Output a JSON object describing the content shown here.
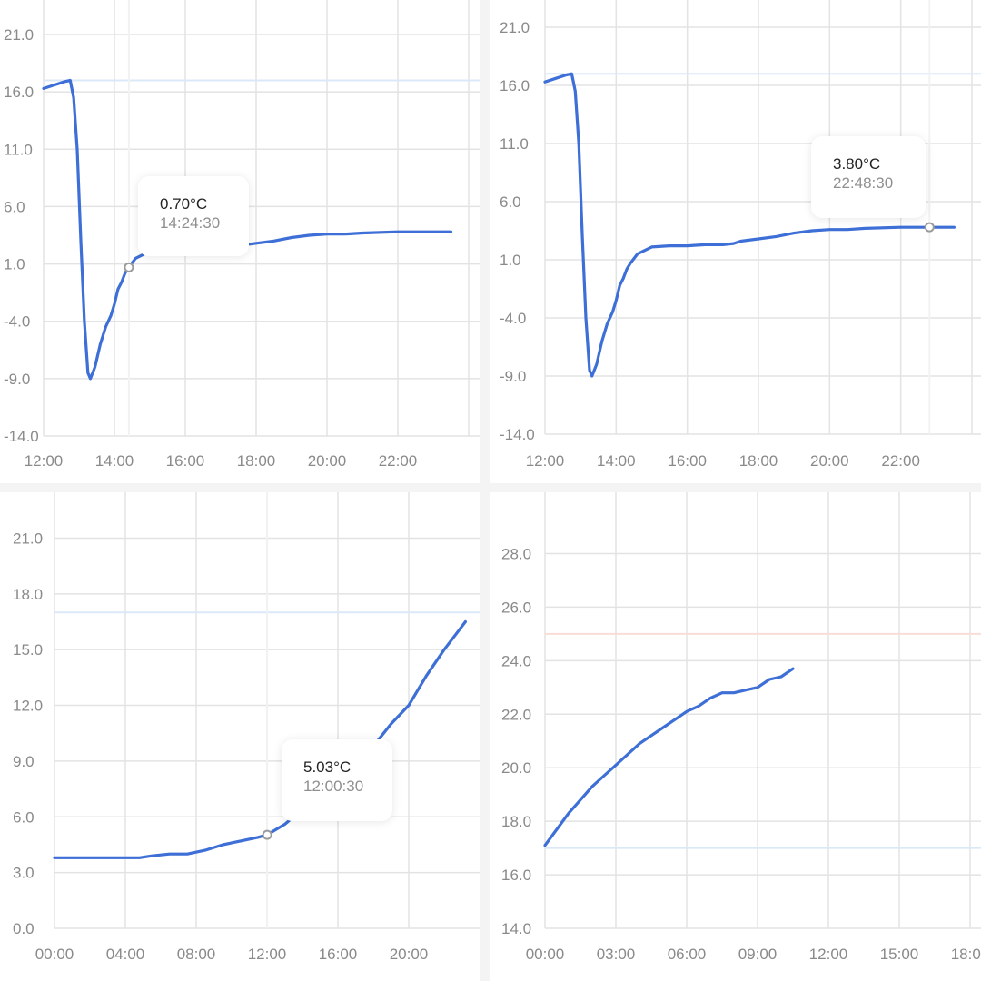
{
  "chart_data": [
    {
      "type": "line",
      "title": "",
      "xlabel": "",
      "ylabel": "",
      "x_unit": "hour",
      "xticks": [
        {
          "v": 12,
          "l": "12:00"
        },
        {
          "v": 14,
          "l": "14:00"
        },
        {
          "v": 16,
          "l": "16:00"
        },
        {
          "v": 18,
          "l": "18:00"
        },
        {
          "v": 20,
          "l": "20:00"
        },
        {
          "v": 22,
          "l": "22:00"
        }
      ],
      "yticks": [
        21.0,
        16.0,
        11.0,
        6.0,
        1.0,
        -4.0,
        -9.0,
        -14.0
      ],
      "ytick_labels": [
        "21.0",
        "16.0",
        "11.0",
        "6.0",
        "1.0",
        "-4.0",
        "-9.0",
        "-14.0"
      ],
      "xlim": [
        12,
        24
      ],
      "ylim": [
        -14,
        21
      ],
      "threshold_lines": [
        {
          "y": 17,
          "color": "#dbe8f8"
        }
      ],
      "series": [
        {
          "color": "#3d6fd6",
          "points": [
            [
              12.0,
              16.3
            ],
            [
              12.3,
              16.6
            ],
            [
              12.6,
              16.9
            ],
            [
              12.75,
              17.0
            ],
            [
              12.85,
              15.5
            ],
            [
              12.95,
              11
            ],
            [
              13.05,
              3
            ],
            [
              13.15,
              -4
            ],
            [
              13.25,
              -8.5
            ],
            [
              13.32,
              -9.0
            ],
            [
              13.45,
              -8.0
            ],
            [
              13.6,
              -6.0
            ],
            [
              13.75,
              -4.5
            ],
            [
              13.9,
              -3.5
            ],
            [
              14.0,
              -2.5
            ],
            [
              14.1,
              -1.2
            ],
            [
              14.2,
              -0.6
            ],
            [
              14.3,
              0.2
            ],
            [
              14.4,
              0.7
            ],
            [
              14.6,
              1.5
            ],
            [
              15.0,
              2.1
            ],
            [
              15.5,
              2.2
            ],
            [
              16.0,
              2.2
            ],
            [
              16.5,
              2.3
            ],
            [
              17.0,
              2.3
            ],
            [
              17.3,
              2.4
            ],
            [
              17.5,
              2.6
            ],
            [
              18.0,
              2.8
            ],
            [
              18.5,
              3.0
            ],
            [
              19.0,
              3.3
            ],
            [
              19.5,
              3.5
            ],
            [
              20.0,
              3.6
            ],
            [
              20.5,
              3.6
            ],
            [
              21.0,
              3.7
            ],
            [
              22.0,
              3.8
            ],
            [
              23.5,
              3.8
            ]
          ]
        }
      ],
      "selected": {
        "x": 14.408,
        "y": 0.7
      },
      "tooltip": {
        "value": "0.70°C",
        "time": "14:24:30"
      }
    },
    {
      "type": "line",
      "title": "",
      "xlabel": "",
      "ylabel": "",
      "x_unit": "hour",
      "xticks": [
        {
          "v": 12,
          "l": "12:00"
        },
        {
          "v": 14,
          "l": "14:00"
        },
        {
          "v": 16,
          "l": "16:00"
        },
        {
          "v": 18,
          "l": "18:00"
        },
        {
          "v": 20,
          "l": "20:00"
        },
        {
          "v": 22,
          "l": "22:00"
        }
      ],
      "yticks": [
        21.0,
        16.0,
        11.0,
        6.0,
        1.0,
        -4.0,
        -9.0,
        -14.0
      ],
      "ytick_labels": [
        "21.0",
        "16.0",
        "11.0",
        "6.0",
        "1.0",
        "-4.0",
        "-9.0",
        "-14.0"
      ],
      "xlim": [
        12,
        24
      ],
      "ylim": [
        -14,
        21
      ],
      "threshold_lines": [
        {
          "y": 17,
          "color": "#dbe8f8"
        }
      ],
      "series": [
        {
          "color": "#3d6fd6",
          "points": [
            [
              12.0,
              16.3
            ],
            [
              12.3,
              16.6
            ],
            [
              12.6,
              16.9
            ],
            [
              12.75,
              17.0
            ],
            [
              12.85,
              15.5
            ],
            [
              12.95,
              11
            ],
            [
              13.05,
              3
            ],
            [
              13.15,
              -4
            ],
            [
              13.25,
              -8.5
            ],
            [
              13.32,
              -9.0
            ],
            [
              13.45,
              -8.0
            ],
            [
              13.6,
              -6.0
            ],
            [
              13.75,
              -4.5
            ],
            [
              13.9,
              -3.5
            ],
            [
              14.0,
              -2.5
            ],
            [
              14.1,
              -1.2
            ],
            [
              14.2,
              -0.6
            ],
            [
              14.3,
              0.2
            ],
            [
              14.4,
              0.7
            ],
            [
              14.6,
              1.5
            ],
            [
              15.0,
              2.1
            ],
            [
              15.5,
              2.2
            ],
            [
              16.0,
              2.2
            ],
            [
              16.5,
              2.3
            ],
            [
              17.0,
              2.3
            ],
            [
              17.3,
              2.4
            ],
            [
              17.5,
              2.6
            ],
            [
              18.0,
              2.8
            ],
            [
              18.5,
              3.0
            ],
            [
              19.0,
              3.3
            ],
            [
              19.5,
              3.5
            ],
            [
              20.0,
              3.6
            ],
            [
              20.5,
              3.6
            ],
            [
              21.0,
              3.7
            ],
            [
              22.0,
              3.8
            ],
            [
              23.5,
              3.8
            ]
          ]
        }
      ],
      "selected": {
        "x": 22.808,
        "y": 3.8
      },
      "tooltip": {
        "value": "3.80°C",
        "time": "22:48:30"
      }
    },
    {
      "type": "line",
      "title": "",
      "xlabel": "",
      "ylabel": "",
      "x_unit": "hour",
      "xticks": [
        {
          "v": 0,
          "l": "00:00"
        },
        {
          "v": 4,
          "l": "04:00"
        },
        {
          "v": 8,
          "l": "08:00"
        },
        {
          "v": 12,
          "l": "12:00"
        },
        {
          "v": 16,
          "l": "16:00"
        },
        {
          "v": 20,
          "l": "20:00"
        }
      ],
      "yticks": [
        21.0,
        18.0,
        15.0,
        12.0,
        9.0,
        6.0,
        3.0,
        0.0
      ],
      "ytick_labels": [
        "21.0",
        "18.0",
        "15.0",
        "12.0",
        "9.0",
        "6.0",
        "3.0",
        "0.0"
      ],
      "xlim": [
        0,
        24
      ],
      "ylim": [
        0,
        22
      ],
      "threshold_lines": [
        {
          "y": 17,
          "color": "#dbe8f8"
        }
      ],
      "series": [
        {
          "color": "#3d6fd6",
          "points": [
            [
              0,
              3.8
            ],
            [
              2,
              3.8
            ],
            [
              4,
              3.8
            ],
            [
              4.8,
              3.8
            ],
            [
              5.5,
              3.9
            ],
            [
              6.5,
              4.0
            ],
            [
              7.5,
              4.0
            ],
            [
              8.5,
              4.2
            ],
            [
              9.5,
              4.5
            ],
            [
              10.5,
              4.7
            ],
            [
              11.5,
              4.9
            ],
            [
              12.0,
              5.03
            ],
            [
              13,
              5.6
            ],
            [
              14,
              6.4
            ],
            [
              15,
              7.2
            ],
            [
              16,
              8.0
            ],
            [
              17,
              8.8
            ],
            [
              18,
              9.8
            ],
            [
              19,
              11.0
            ],
            [
              20,
              12.0
            ],
            [
              21,
              13.6
            ],
            [
              22,
              15.0
            ],
            [
              23.2,
              16.5
            ]
          ]
        }
      ],
      "selected": {
        "x": 12.008,
        "y": 5.03
      },
      "tooltip": {
        "value": "5.03°C",
        "time": "12:00:30"
      }
    },
    {
      "type": "line",
      "title": "",
      "xlabel": "",
      "ylabel": "",
      "x_unit": "hour",
      "xticks": [
        {
          "v": 0,
          "l": "00:00"
        },
        {
          "v": 3,
          "l": "03:00"
        },
        {
          "v": 6,
          "l": "06:00"
        },
        {
          "v": 9,
          "l": "09:00"
        },
        {
          "v": 12,
          "l": "12:00"
        },
        {
          "v": 15,
          "l": "15:00"
        },
        {
          "v": 18,
          "l": "18:00"
        }
      ],
      "yticks": [
        28.0,
        26.0,
        24.0,
        22.0,
        20.0,
        18.0,
        16.0,
        14.0
      ],
      "ytick_labels": [
        "28.0",
        "26.0",
        "24.0",
        "22.0",
        "20.0",
        "18.0",
        "16.0",
        "14.0"
      ],
      "xlim": [
        0,
        18
      ],
      "ylim": [
        14,
        29
      ],
      "threshold_lines": [
        {
          "y": 25,
          "color": "#f8ded6"
        },
        {
          "y": 17,
          "color": "#dbe8f8"
        }
      ],
      "series": [
        {
          "color": "#3d6fd6",
          "points": [
            [
              0,
              17.1
            ],
            [
              0.5,
              17.7
            ],
            [
              1,
              18.3
            ],
            [
              1.5,
              18.8
            ],
            [
              2,
              19.3
            ],
            [
              2.5,
              19.7
            ],
            [
              3,
              20.1
            ],
            [
              3.5,
              20.5
            ],
            [
              4,
              20.9
            ],
            [
              4.5,
              21.2
            ],
            [
              5,
              21.5
            ],
            [
              5.5,
              21.8
            ],
            [
              6,
              22.1
            ],
            [
              6.5,
              22.3
            ],
            [
              7,
              22.6
            ],
            [
              7.5,
              22.8
            ],
            [
              8,
              22.8
            ],
            [
              8.5,
              22.9
            ],
            [
              9,
              23.0
            ],
            [
              9.5,
              23.3
            ],
            [
              10,
              23.4
            ],
            [
              10.5,
              23.7
            ]
          ]
        }
      ]
    }
  ]
}
